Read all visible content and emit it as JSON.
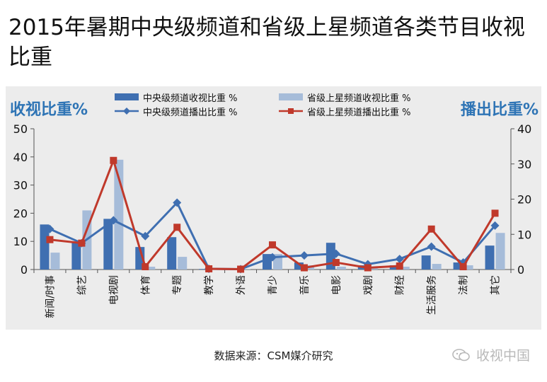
{
  "title": "2015年暑期中央级频道和省级上星频道各类节目收视比重",
  "source": "数据来源：CSM媒介研究",
  "watermark": "收视中国",
  "colors": {
    "central_bar": "#3f6fb1",
    "provincial_bar": "#a6bcd9",
    "central_line": "#3f6fb1",
    "provincial_line": "#c0392b",
    "axis_title": "#2e74b5"
  },
  "chart_data": {
    "type": "bar",
    "left_axis_title": "收视比重%",
    "right_axis_title": "播出比重%",
    "categories": [
      "新闻/时事",
      "综艺",
      "电视剧",
      "体育",
      "专题",
      "教学",
      "外语",
      "青少",
      "音乐",
      "电影",
      "戏剧",
      "财经",
      "生活服务",
      "法制",
      "其它"
    ],
    "ylim_left": [
      0,
      50
    ],
    "yticks_left": [
      0,
      10,
      20,
      30,
      40,
      50
    ],
    "ylim_right": [
      0,
      40
    ],
    "yticks_right": [
      0,
      10,
      20,
      30,
      40
    ],
    "grid": false,
    "legend_position": "top",
    "bar_series": [
      {
        "name": "中央级频道收视比重 %",
        "axis": "left",
        "color": "#3f6fb1",
        "values": [
          16,
          9.5,
          18,
          8,
          11.5,
          0.2,
          0.2,
          5.5,
          2.5,
          9.5,
          1.5,
          1.5,
          5,
          2.5,
          8.5
        ]
      },
      {
        "name": "省级上星频道收视比重 %",
        "axis": "left",
        "color": "#a6bcd9",
        "values": [
          6,
          21,
          39,
          1,
          4.5,
          0.1,
          0.1,
          5.5,
          1.5,
          1,
          0.5,
          1,
          2,
          1.5,
          13
        ]
      }
    ],
    "line_series": [
      {
        "name": "中央级频道播出比重 %",
        "axis": "right",
        "color": "#3f6fb1",
        "marker": "diamond",
        "values": [
          11.5,
          7.5,
          14,
          9.5,
          19,
          0.2,
          0.1,
          3.5,
          4,
          4.5,
          1.5,
          3,
          6.5,
          2,
          12.5
        ]
      },
      {
        "name": "省级上星频道播出比重 %",
        "axis": "right",
        "color": "#c0392b",
        "marker": "square",
        "values": [
          8.5,
          7.5,
          31,
          0.8,
          12,
          0.2,
          0.1,
          7,
          0.5,
          2,
          0.5,
          1,
          11.5,
          0.8,
          16
        ]
      }
    ]
  }
}
